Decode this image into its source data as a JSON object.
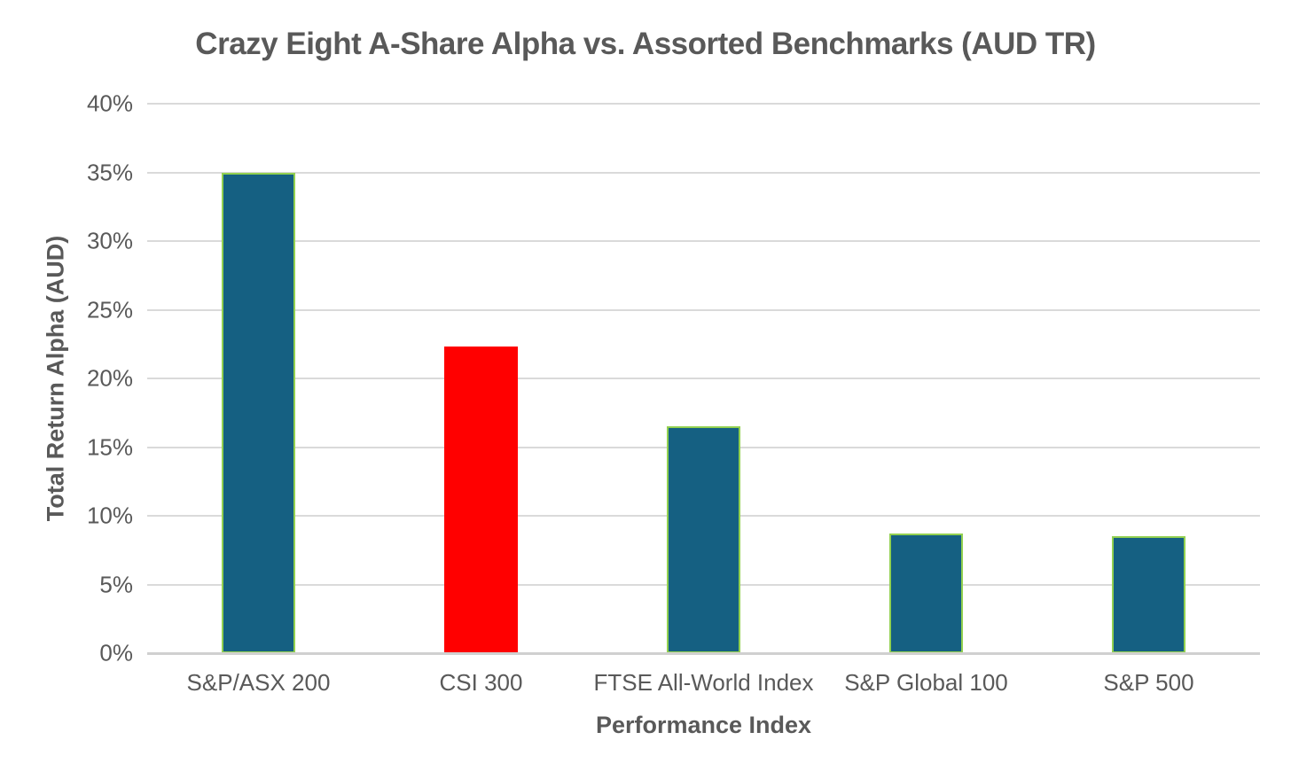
{
  "chart_data": {
    "type": "bar",
    "title": "Crazy Eight A-Share Alpha vs. Assorted Benchmarks (AUD TR)",
    "xlabel": "Performance Index",
    "ylabel": "Total Return Alpha (AUD)",
    "categories": [
      "S&P/ASX 200",
      "CSI 300",
      "FTSE All-World Index",
      "S&P Global 100",
      "S&P 500"
    ],
    "values": [
      35.0,
      22.3,
      16.5,
      8.7,
      8.5
    ],
    "value_unit": "%",
    "ylim": [
      0,
      40
    ],
    "ytick_step": 5,
    "ytick_labels": [
      "0%",
      "5%",
      "10%",
      "15%",
      "20%",
      "25%",
      "30%",
      "35%",
      "40%"
    ],
    "grid": "horizontal-only",
    "legend": "none",
    "highlighted_category": "CSI 300",
    "bar_fill_colors": [
      "#156082",
      "#FF0000",
      "#156082",
      "#156082",
      "#156082"
    ],
    "bar_outline_colors": [
      "#92D050",
      "none",
      "#92D050",
      "#92D050",
      "#92D050"
    ],
    "colors": {
      "default_bar": "#156082",
      "highlight_bar": "#FF0000",
      "bar_outline": "#92D050",
      "gridline": "#DADADA",
      "axis_line": "#D0D0D0",
      "text": "#595959",
      "background": "#FFFFFF"
    }
  }
}
